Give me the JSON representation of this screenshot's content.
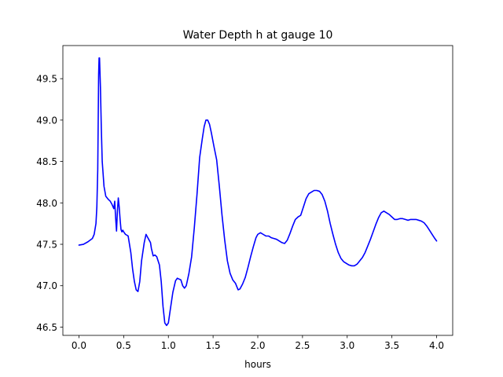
{
  "chart_data": {
    "type": "line",
    "title": "Water Depth h at gauge 10",
    "xlabel": "hours",
    "ylabel": "",
    "xlim": [
      -0.18,
      4.18
    ],
    "ylim": [
      46.4,
      49.9
    ],
    "xticks": [
      0.0,
      0.5,
      1.0,
      1.5,
      2.0,
      2.5,
      3.0,
      3.5,
      4.0
    ],
    "xtick_labels": [
      "0.0",
      "0.5",
      "1.0",
      "1.5",
      "2.0",
      "2.5",
      "3.0",
      "3.5",
      "4.0"
    ],
    "yticks": [
      46.5,
      47.0,
      47.5,
      48.0,
      48.5,
      49.0,
      49.5
    ],
    "ytick_labels": [
      "46.5",
      "47.0",
      "47.5",
      "48.0",
      "48.5",
      "49.0",
      "49.5"
    ],
    "grid": false,
    "legend": "none",
    "series": [
      {
        "color": "#0000ff",
        "x": [
          0.0,
          0.05,
          0.1,
          0.15,
          0.17,
          0.19,
          0.2,
          0.21,
          0.22,
          0.225,
          0.23,
          0.24,
          0.25,
          0.26,
          0.28,
          0.3,
          0.33,
          0.35,
          0.37,
          0.39,
          0.4,
          0.41,
          0.42,
          0.43,
          0.44,
          0.45,
          0.46,
          0.47,
          0.48,
          0.49,
          0.5,
          0.52,
          0.55,
          0.58,
          0.6,
          0.62,
          0.64,
          0.66,
          0.68,
          0.7,
          0.73,
          0.75,
          0.77,
          0.79,
          0.8,
          0.81,
          0.83,
          0.85,
          0.87,
          0.9,
          0.92,
          0.94,
          0.96,
          0.98,
          1.0,
          1.02,
          1.05,
          1.08,
          1.1,
          1.12,
          1.14,
          1.16,
          1.18,
          1.2,
          1.23,
          1.26,
          1.29,
          1.32,
          1.35,
          1.38,
          1.4,
          1.42,
          1.44,
          1.46,
          1.48,
          1.51,
          1.54,
          1.57,
          1.6,
          1.63,
          1.66,
          1.69,
          1.72,
          1.75,
          1.78,
          1.8,
          1.83,
          1.86,
          1.89,
          1.92,
          1.95,
          1.98,
          2.0,
          2.03,
          2.06,
          2.09,
          2.12,
          2.15,
          2.18,
          2.21,
          2.24,
          2.27,
          2.3,
          2.33,
          2.36,
          2.39,
          2.42,
          2.45,
          2.48,
          2.51,
          2.54,
          2.57,
          2.6,
          2.63,
          2.66,
          2.69,
          2.72,
          2.75,
          2.78,
          2.81,
          2.84,
          2.87,
          2.9,
          2.93,
          2.96,
          2.99,
          3.02,
          3.05,
          3.08,
          3.11,
          3.14,
          3.17,
          3.2,
          3.23,
          3.26,
          3.29,
          3.32,
          3.35,
          3.38,
          3.41,
          3.44,
          3.47,
          3.5,
          3.53,
          3.56,
          3.59,
          3.62,
          3.65,
          3.68,
          3.71,
          3.74,
          3.77,
          3.8,
          3.83,
          3.86,
          3.89,
          3.92,
          3.95,
          3.98,
          4.0
        ],
        "y": [
          47.49,
          47.5,
          47.53,
          47.57,
          47.62,
          47.75,
          47.95,
          48.4,
          49.55,
          49.75,
          49.75,
          49.4,
          48.9,
          48.5,
          48.2,
          48.08,
          48.04,
          48.02,
          47.98,
          47.93,
          48.02,
          47.82,
          47.66,
          47.9,
          48.06,
          47.95,
          47.8,
          47.68,
          47.65,
          47.67,
          47.65,
          47.62,
          47.6,
          47.4,
          47.2,
          47.05,
          46.95,
          46.93,
          47.05,
          47.3,
          47.52,
          47.62,
          47.58,
          47.54,
          47.52,
          47.45,
          47.36,
          47.37,
          47.35,
          47.25,
          47.05,
          46.75,
          46.55,
          46.52,
          46.55,
          46.7,
          46.92,
          47.06,
          47.09,
          47.08,
          47.07,
          47.0,
          46.97,
          47.0,
          47.15,
          47.35,
          47.7,
          48.1,
          48.55,
          48.78,
          48.92,
          49.0,
          49.0,
          48.95,
          48.85,
          48.68,
          48.52,
          48.2,
          47.85,
          47.55,
          47.3,
          47.15,
          47.07,
          47.03,
          46.95,
          46.96,
          47.02,
          47.1,
          47.22,
          47.35,
          47.47,
          47.58,
          47.62,
          47.64,
          47.62,
          47.6,
          47.6,
          47.58,
          47.57,
          47.56,
          47.54,
          47.52,
          47.51,
          47.55,
          47.63,
          47.72,
          47.8,
          47.83,
          47.85,
          47.95,
          48.05,
          48.11,
          48.13,
          48.15,
          48.15,
          48.14,
          48.1,
          48.02,
          47.9,
          47.75,
          47.62,
          47.5,
          47.4,
          47.33,
          47.29,
          47.27,
          47.25,
          47.24,
          47.24,
          47.26,
          47.3,
          47.34,
          47.4,
          47.48,
          47.56,
          47.65,
          47.74,
          47.82,
          47.88,
          47.9,
          47.88,
          47.86,
          47.83,
          47.8,
          47.8,
          47.81,
          47.81,
          47.8,
          47.79,
          47.8,
          47.8,
          47.8,
          47.79,
          47.78,
          47.76,
          47.72,
          47.67,
          47.62,
          47.57,
          47.54
        ]
      }
    ]
  }
}
